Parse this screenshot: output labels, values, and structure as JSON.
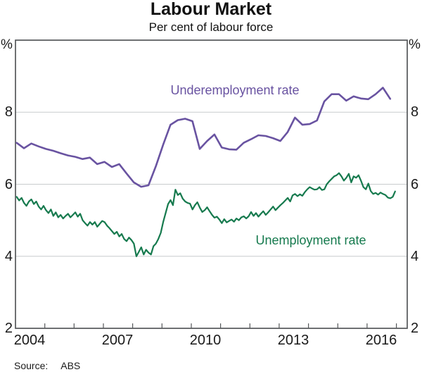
{
  "title": "Labour Market",
  "subtitle": "Per cent of labour force",
  "source_label": "Source:",
  "source_value": "ABS",
  "y_axis": {
    "left": [
      "%",
      "8",
      "6",
      "4",
      "2"
    ],
    "right": [
      "%",
      "8",
      "6",
      "4",
      "2"
    ]
  },
  "x_axis": {
    "labels": [
      "2004",
      "2007",
      "2010",
      "2013",
      "2016"
    ]
  },
  "chart_data": {
    "type": "line",
    "title": "Labour Market",
    "subtitle": "Per cent of labour force",
    "ylabel": "%",
    "x_range": [
      2004,
      2017.37
    ],
    "y_range": [
      2,
      10
    ],
    "y_gridlines": [
      4,
      6,
      8
    ],
    "x_year_ticks": [
      2005,
      2006,
      2007,
      2008,
      2009,
      2010,
      2011,
      2012,
      2013,
      2014,
      2015,
      2016,
      2017
    ],
    "colors": {
      "grid": "#c8cbcd",
      "axis": "#55585a",
      "text": "#1a1a1a"
    },
    "series": [
      {
        "name": "Underemployment rate",
        "data_name": "underemployment-line",
        "color": "#6953a1",
        "width": 2.6,
        "frequency": "quarterly",
        "x_start": 2004.04,
        "x_step": 0.25,
        "values": [
          7.15,
          7.0,
          7.13,
          7.05,
          6.98,
          6.93,
          6.86,
          6.8,
          6.76,
          6.7,
          6.74,
          6.56,
          6.62,
          6.48,
          6.56,
          6.3,
          6.05,
          5.93,
          5.97,
          6.5,
          7.1,
          7.65,
          7.78,
          7.82,
          7.75,
          6.98,
          7.2,
          7.38,
          7.02,
          6.97,
          6.96,
          7.15,
          7.25,
          7.36,
          7.34,
          7.28,
          7.2,
          7.45,
          7.85,
          7.65,
          7.67,
          7.77,
          8.3,
          8.5,
          8.5,
          8.32,
          8.44,
          8.38,
          8.36,
          8.5,
          8.68,
          8.37
        ]
      },
      {
        "name": "Unemployment rate",
        "data_name": "unemployment-line",
        "color": "#167a4e",
        "width": 2.2,
        "frequency": "monthly",
        "x_start": 2004.042,
        "x_step": 0.08333,
        "values": [
          5.65,
          5.55,
          5.62,
          5.48,
          5.4,
          5.52,
          5.58,
          5.45,
          5.52,
          5.38,
          5.3,
          5.4,
          5.28,
          5.2,
          5.3,
          5.12,
          5.22,
          5.08,
          5.15,
          5.05,
          5.12,
          5.18,
          5.08,
          5.15,
          5.22,
          5.1,
          5.18,
          5.0,
          4.92,
          4.85,
          4.95,
          4.88,
          4.95,
          4.82,
          4.9,
          4.98,
          4.95,
          4.85,
          4.78,
          4.7,
          4.62,
          4.68,
          4.55,
          4.62,
          4.48,
          4.42,
          4.52,
          4.45,
          4.35,
          4.0,
          4.12,
          4.25,
          4.05,
          4.18,
          4.1,
          4.05,
          4.28,
          4.35,
          4.48,
          4.65,
          4.95,
          5.2,
          5.45,
          5.56,
          5.42,
          5.85,
          5.7,
          5.75,
          5.6,
          5.52,
          5.48,
          5.46,
          5.3,
          5.42,
          5.5,
          5.35,
          5.23,
          5.28,
          5.36,
          5.25,
          5.15,
          5.07,
          5.1,
          5.02,
          4.92,
          5.03,
          4.94,
          4.98,
          5.02,
          4.96,
          5.05,
          5.0,
          5.08,
          5.11,
          5.05,
          5.11,
          5.23,
          5.12,
          5.2,
          5.1,
          5.18,
          5.25,
          5.15,
          5.22,
          5.3,
          5.38,
          5.28,
          5.35,
          5.42,
          5.48,
          5.55,
          5.62,
          5.52,
          5.69,
          5.73,
          5.67,
          5.72,
          5.68,
          5.78,
          5.86,
          5.92,
          5.88,
          5.85,
          5.86,
          5.92,
          5.84,
          5.86,
          6.0,
          6.08,
          6.15,
          6.22,
          6.25,
          6.31,
          6.22,
          6.1,
          6.18,
          6.29,
          6.05,
          6.22,
          6.18,
          6.25,
          6.1,
          5.92,
          5.86,
          6.02,
          5.81,
          5.73,
          5.76,
          5.71,
          5.77,
          5.73,
          5.7,
          5.63,
          5.61,
          5.65,
          5.8
        ]
      }
    ]
  }
}
